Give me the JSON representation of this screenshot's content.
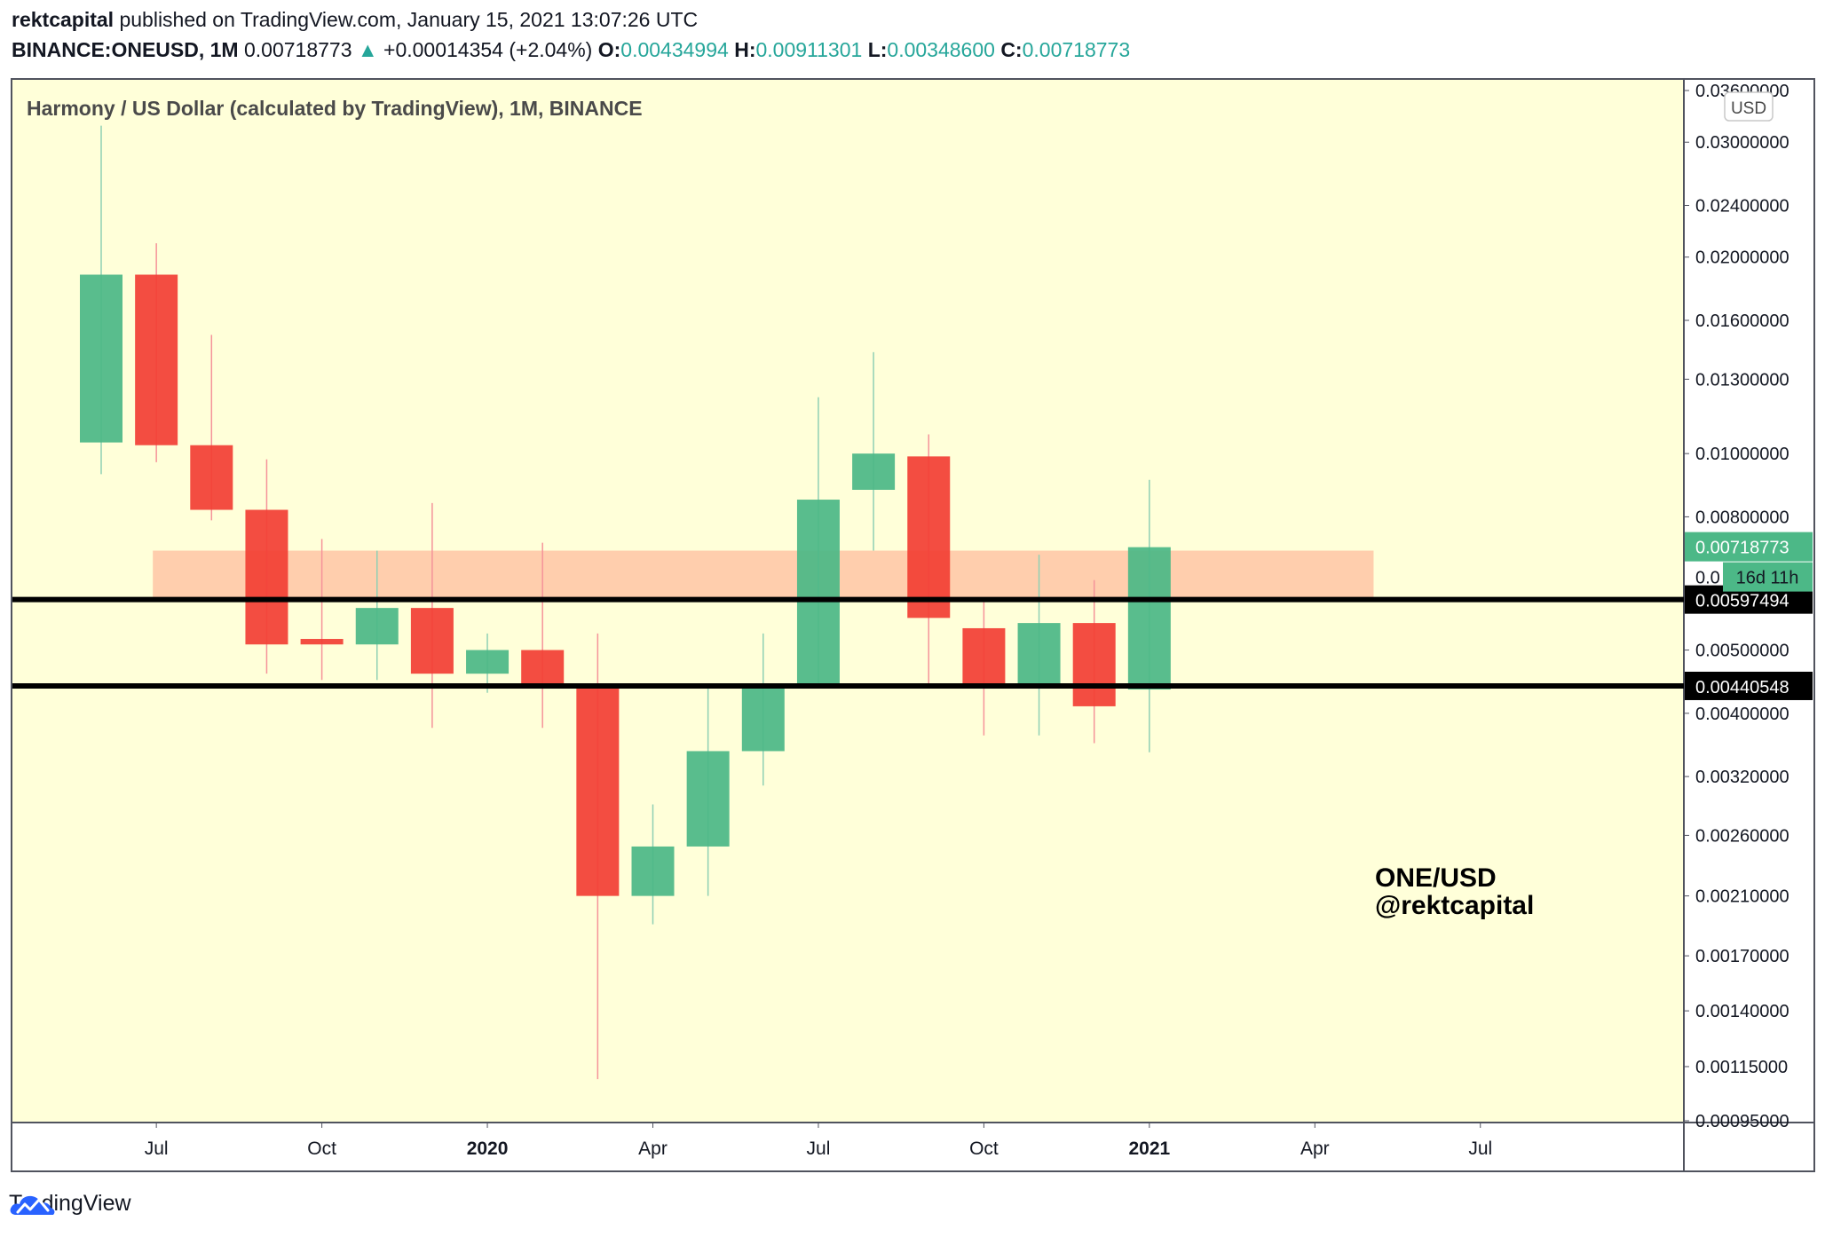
{
  "header": {
    "author": "rektcapital",
    "published_text": "published on TradingView.com, January 15, 2021 13:07:26 UTC",
    "symbol": "BINANCE:ONEUSD, 1M",
    "last_price": "0.00718773",
    "change_arrow": "▲",
    "change": "+0.00014354 (+2.04%)",
    "o_label": "O:",
    "o_value": "0.00434994",
    "h_label": "H:",
    "h_value": "0.00911301",
    "l_label": "L:",
    "l_value": "0.00348600",
    "c_label": "C:",
    "c_value": "0.00718773"
  },
  "footer": {
    "brand": "TradingView"
  },
  "colors": {
    "background": "#ffffd9",
    "up": "#4cb887",
    "down": "#f23f35",
    "zone": "#ffc6a5",
    "teal_text": "#26a69a",
    "wick_up": "#8fd0b4",
    "wick_down": "#f5939a"
  },
  "chart_data": {
    "type": "candlestick",
    "title": "Harmony / US Dollar (calculated by TradingView), 1M, BINANCE",
    "currency_badge": "USD",
    "scale": "log",
    "ylim": [
      0.00095,
      0.036
    ],
    "x_ticks": [
      {
        "label": "Jul",
        "index": 1,
        "bold": false
      },
      {
        "label": "Oct",
        "index": 4,
        "bold": false
      },
      {
        "label": "2020",
        "index": 7,
        "bold": true
      },
      {
        "label": "Apr",
        "index": 10,
        "bold": false
      },
      {
        "label": "Jul",
        "index": 13,
        "bold": false
      },
      {
        "label": "Oct",
        "index": 16,
        "bold": false
      },
      {
        "label": "2021",
        "index": 19,
        "bold": true
      },
      {
        "label": "Apr",
        "index": 22,
        "bold": false
      },
      {
        "label": "Jul",
        "index": 25,
        "bold": false
      }
    ],
    "y_ticks": [
      "0.03600000",
      "0.03000000",
      "0.02400000",
      "0.02000000",
      "0.01600000",
      "0.01300000",
      "0.01000000",
      "0.00800000",
      "0.00500000",
      "0.00400000",
      "0.00320000",
      "0.00260000",
      "0.00210000",
      "0.00170000",
      "0.00140000",
      "0.00115000",
      "0.00095000"
    ],
    "candles": [
      {
        "month": "2019-06",
        "open": 0.0104,
        "high": 0.0318,
        "low": 0.0093,
        "close": 0.0188
      },
      {
        "month": "2019-07",
        "open": 0.0188,
        "high": 0.021,
        "low": 0.0097,
        "close": 0.0103
      },
      {
        "month": "2019-08",
        "open": 0.0103,
        "high": 0.0152,
        "low": 0.0079,
        "close": 0.0082
      },
      {
        "month": "2019-09",
        "open": 0.0082,
        "high": 0.0098,
        "low": 0.0046,
        "close": 0.0051
      },
      {
        "month": "2019-10",
        "open": 0.0052,
        "high": 0.0074,
        "low": 0.0045,
        "close": 0.0051
      },
      {
        "month": "2019-11",
        "open": 0.0051,
        "high": 0.0071,
        "low": 0.0045,
        "close": 0.0058
      },
      {
        "month": "2019-12",
        "open": 0.0058,
        "high": 0.0084,
        "low": 0.0038,
        "close": 0.0046
      },
      {
        "month": "2020-01",
        "open": 0.0046,
        "high": 0.0053,
        "low": 0.0043,
        "close": 0.005
      },
      {
        "month": "2020-02",
        "open": 0.005,
        "high": 0.0073,
        "low": 0.0038,
        "close": 0.0044
      },
      {
        "month": "2020-03",
        "open": 0.0044,
        "high": 0.0053,
        "low": 0.0011,
        "close": 0.0021
      },
      {
        "month": "2020-04",
        "open": 0.0021,
        "high": 0.0029,
        "low": 0.0019,
        "close": 0.0025
      },
      {
        "month": "2020-05",
        "open": 0.0025,
        "high": 0.0044,
        "low": 0.0021,
        "close": 0.0035
      },
      {
        "month": "2020-06",
        "open": 0.0035,
        "high": 0.0053,
        "low": 0.0031,
        "close": 0.0044
      },
      {
        "month": "2020-07",
        "open": 0.0044,
        "high": 0.0122,
        "low": 0.0044,
        "close": 0.0085
      },
      {
        "month": "2020-08",
        "open": 0.0088,
        "high": 0.0143,
        "low": 0.0071,
        "close": 0.01
      },
      {
        "month": "2020-09",
        "open": 0.0099,
        "high": 0.0107,
        "low": 0.0044,
        "close": 0.0056
      },
      {
        "month": "2020-10",
        "open": 0.0054,
        "high": 0.006,
        "low": 0.0037,
        "close": 0.0044
      },
      {
        "month": "2020-11",
        "open": 0.0044,
        "high": 0.007,
        "low": 0.0037,
        "close": 0.0055
      },
      {
        "month": "2020-12",
        "open": 0.0055,
        "high": 0.0064,
        "low": 0.0036,
        "close": 0.0041
      },
      {
        "month": "2021-01",
        "open": 0.00434994,
        "high": 0.00911301,
        "low": 0.003486,
        "close": 0.00718773
      }
    ],
    "zone": {
      "from": 0.006,
      "to": 0.0071,
      "start_index": 1,
      "end_index": 23
    },
    "horizontal_lines": [
      {
        "price": 0.00597494,
        "label": "0.00597494"
      },
      {
        "price": 0.00440548,
        "label": "0.00440548"
      }
    ],
    "price_labels": {
      "last": "0.00718773",
      "countdown": "16d 11h",
      "hidden_tick": "0.0"
    },
    "annotation": [
      "ONE/USD",
      "@rektcapital"
    ]
  }
}
